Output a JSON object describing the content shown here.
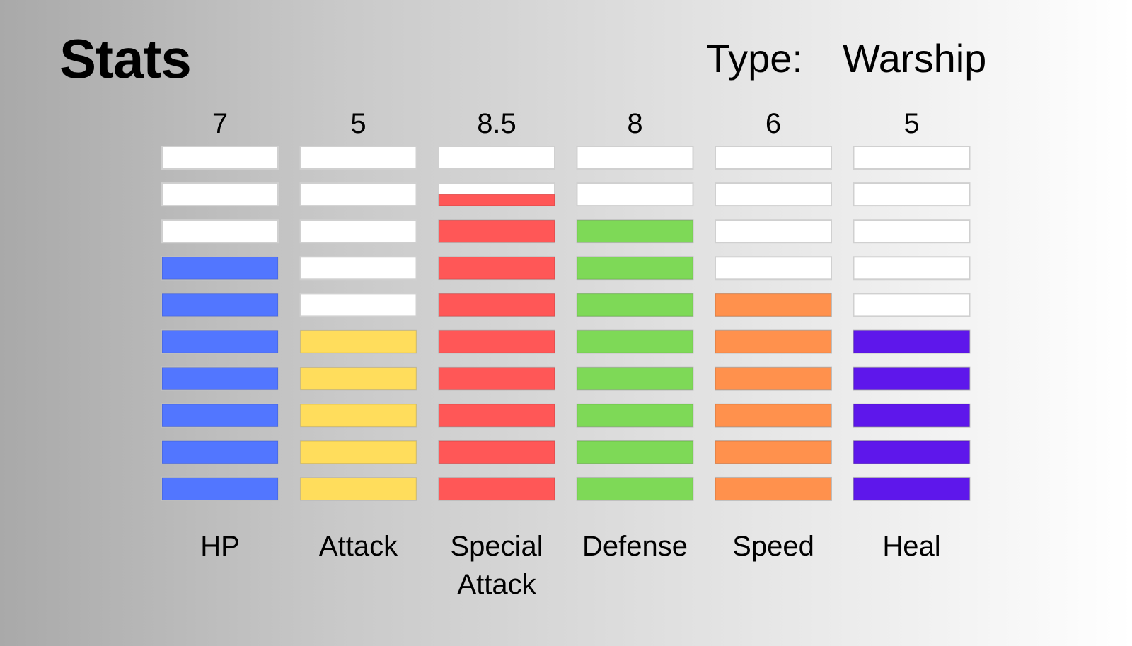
{
  "header": {
    "title": "Stats",
    "type_label": "Type:",
    "type_value": "Warship"
  },
  "chart_data": {
    "type": "bar",
    "max_segments": 10,
    "categories": [
      {
        "label": "HP",
        "value_label": "7",
        "value": 7,
        "color": "#5276ff"
      },
      {
        "label": "Attack",
        "value_label": "5",
        "value": 5,
        "color": "#ffdd5c"
      },
      {
        "label": "Special Attack",
        "value_label": "8.5",
        "value": 8.5,
        "color": "#ff5757"
      },
      {
        "label": "Defense",
        "value_label": "8",
        "value": 8,
        "color": "#7ed957"
      },
      {
        "label": "Speed",
        "value_label": "6",
        "value": 6,
        "color": "#ff914d"
      },
      {
        "label": "Heal",
        "value_label": "5",
        "value": 5,
        "color": "#5e17eb"
      }
    ]
  }
}
